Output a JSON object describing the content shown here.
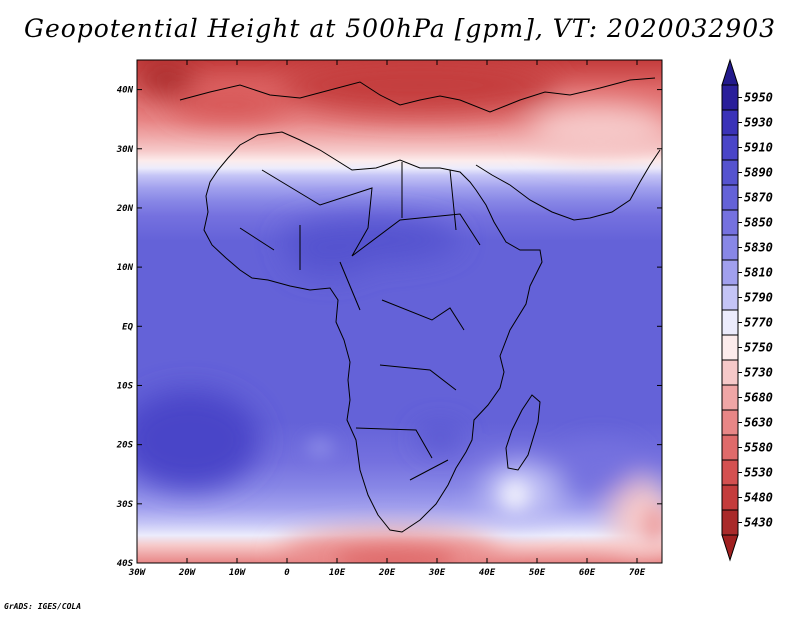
{
  "title": "Geopotential Height at 500hPa [gpm], VT: 2020032903",
  "footer": "GrADS: IGES/COLA",
  "map": {
    "lon_range": [
      -30,
      75
    ],
    "lat_range": [
      -40,
      45
    ],
    "lat_labels": [
      "40N",
      "30N",
      "20N",
      "10N",
      "EQ",
      "10S",
      "20S",
      "30S",
      "40S"
    ],
    "lat_values": [
      40,
      30,
      20,
      10,
      0,
      -10,
      -20,
      -30,
      -40
    ],
    "lon_labels": [
      "30W",
      "20W",
      "10W",
      "0",
      "10E",
      "20E",
      "30E",
      "40E",
      "50E",
      "60E",
      "70E"
    ],
    "lon_values": [
      -30,
      -20,
      -10,
      0,
      10,
      20,
      30,
      40,
      50,
      60,
      70
    ]
  },
  "colorbar": {
    "labels": [
      "5950",
      "5930",
      "5910",
      "5890",
      "5870",
      "5850",
      "5830",
      "5810",
      "5790",
      "5770",
      "5750",
      "5730",
      "5680",
      "5630",
      "5580",
      "5530",
      "5480",
      "5430"
    ],
    "colors": [
      "#2a1f9a",
      "#3a32b8",
      "#4a45c8",
      "#5553cf",
      "#6462d8",
      "#7571df",
      "#8887e6",
      "#a1a0ee",
      "#c4c4f6",
      "#ececfc",
      "#fcecec",
      "#f6c9c9",
      "#efa6a6",
      "#e88686",
      "#df6a6a",
      "#d45050",
      "#c43c3c",
      "#a92a2a"
    ],
    "top_triangle_color": "#231a8c",
    "bottom_triangle_color": "#a02020"
  }
}
